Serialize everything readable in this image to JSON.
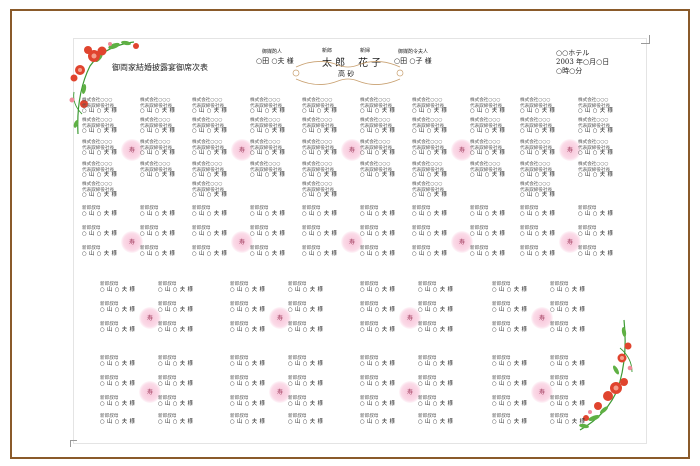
{
  "document_title": "御両家結婚披露宴御席次表",
  "header": {
    "groom_parent_label": "御媒酌人",
    "groom_parent_name": "○田 ○夫 様",
    "groom_label": "新郎",
    "groom_name": "太 郎",
    "bride_label": "新婦",
    "bride_name": "花 子",
    "bride_parent_label": "御媒酌令夫人",
    "bride_parent_name": "○田 ○子 様",
    "head_table": "高 砂"
  },
  "venue": {
    "hotel": "○○ホテル",
    "date": "2003 年○月○日",
    "time": "○時○分"
  },
  "seat_company": "株式会社○○○",
  "seat_rep": "代表取締役社長",
  "seat_guest_title": "新郎叔母",
  "seat_guest_name": "○ 山 ○ 夫 様",
  "table_mark": "寿",
  "colors": {
    "frame": "#8a5a2a",
    "table_circle": "#f7c3d8",
    "flower": "#e0442e",
    "leaf": "#3d9a34"
  }
}
